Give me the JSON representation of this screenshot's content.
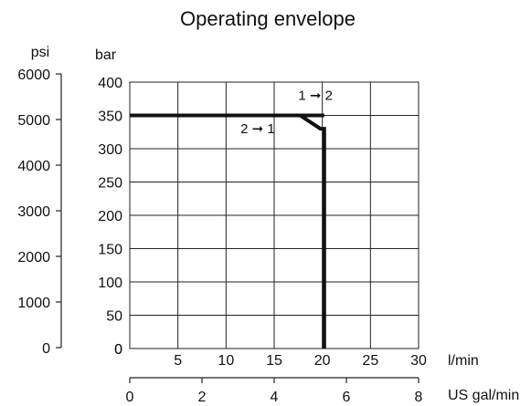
{
  "chart_data": {
    "type": "line",
    "title": "Operating envelope",
    "x_primary": {
      "label": "l/min",
      "range": [
        0,
        30
      ],
      "ticks": [
        "0",
        "5",
        "10",
        "15",
        "20",
        "25",
        "30"
      ]
    },
    "x_secondary": {
      "label": "US gal/min",
      "range": [
        0,
        8
      ],
      "ticks": [
        "0",
        "2",
        "4",
        "6",
        "8"
      ]
    },
    "y_primary": {
      "label": "bar",
      "range": [
        0,
        400
      ],
      "ticks": [
        "0",
        "50",
        "100",
        "150",
        "200",
        "250",
        "300",
        "350",
        "400"
      ]
    },
    "y_secondary": {
      "label": "psi",
      "range": [
        0,
        6000
      ],
      "ticks": [
        "0",
        "1000",
        "2000",
        "3000",
        "4000",
        "5000",
        "6000"
      ]
    },
    "grid": true,
    "series": [
      {
        "x": [
          0,
          17.7,
          19.8,
          20.2,
          20.2
        ],
        "y": [
          350,
          350,
          330,
          330,
          0
        ]
      },
      {
        "x": [
          17.7,
          20.2
        ],
        "y": [
          350,
          350
        ]
      }
    ],
    "annotations": [
      {
        "text": "1  ➞ 2",
        "x": 17.5,
        "y": 373
      },
      {
        "text": "2  ➞ 1",
        "x": 11.5,
        "y": 323
      }
    ],
    "colors": {
      "line": "#111111",
      "grid": "#222222"
    }
  }
}
